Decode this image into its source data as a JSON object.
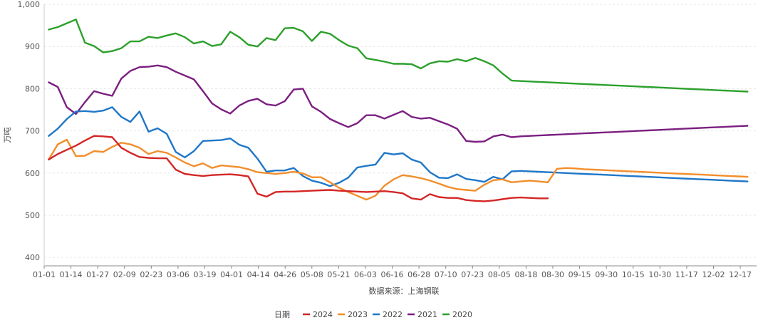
{
  "chart_data": {
    "type": "line",
    "title": "",
    "ylabel": "万吨",
    "xlabel": "数据来源：上海钢联",
    "ylim": [
      380,
      1000
    ],
    "yticks": [
      400,
      500,
      600,
      700,
      800,
      900,
      1000
    ],
    "ytick_labels": [
      "400",
      "500",
      "600",
      "700",
      "800",
      "900",
      "1,000"
    ],
    "x_tick_labels": [
      "01-01",
      "01-14",
      "01-27",
      "02-09",
      "02-23",
      "03-06",
      "03-19",
      "04-01",
      "04-14",
      "04-26",
      "05-08",
      "05-21",
      "06-03",
      "06-16",
      "06-28",
      "07-10",
      "07-23",
      "08-05",
      "08-18",
      "08-30",
      "09-15",
      "09-30",
      "10-15",
      "10-30",
      "11-17",
      "12-02",
      "12-17"
    ],
    "x_tick_positions": [
      0,
      2.95,
      5.9,
      8.85,
      11.8,
      14.75,
      17.7,
      20.65,
      23.6,
      26.55,
      29.5,
      32.45,
      35.4,
      38.35,
      41.3,
      44.25,
      47.2,
      50.15,
      53.1,
      56.05,
      59,
      61.95,
      64.9,
      67.85,
      70.8,
      73.75,
      76.7
    ],
    "x_range": [
      0,
      78.5
    ],
    "legend_title": "日期",
    "legend_position": "bottom-center",
    "series": [
      {
        "name": "2024",
        "color": "#d42626",
        "x": [
          0.5,
          1.5,
          2.5,
          3.5,
          4.5,
          5.5,
          6.5,
          7.5,
          8.5,
          9.5,
          10.5,
          11.5,
          12.5,
          13.5,
          14.5,
          15.5,
          16.5,
          17.5,
          18.5,
          19.5,
          20.5,
          21.5,
          22.5,
          23.5,
          24.5,
          25.5,
          26.5,
          27.5,
          28.5,
          29.5,
          30.5,
          31.5,
          32.5,
          33.5,
          34.5,
          35.5,
          36.5,
          37.5,
          38.5,
          39.5,
          40.5,
          41.5,
          42.5,
          43.5,
          44.5,
          45.5,
          46.5,
          47.5,
          48.5,
          49.5,
          50.5,
          51.5,
          52.5,
          53.5,
          54.5,
          55.5
        ],
        "values": [
          632,
          645,
          655,
          665,
          677,
          688,
          687,
          685,
          660,
          648,
          638,
          636,
          635,
          635,
          608,
          598,
          595,
          593,
          595,
          596,
          597,
          595,
          592,
          551,
          544,
          555,
          556,
          556,
          557,
          558,
          559,
          560,
          558,
          557,
          556,
          555,
          556,
          557,
          555,
          552,
          540,
          537,
          550,
          543,
          541,
          541,
          536,
          534,
          533,
          535,
          538,
          541,
          542,
          541,
          540,
          540
        ]
      },
      {
        "name": "2023",
        "color": "#f28e2b",
        "x": [
          0.5,
          1.5,
          2.5,
          3.5,
          4.5,
          5.5,
          6.5,
          7.5,
          8.5,
          9.5,
          10.5,
          11.5,
          12.5,
          13.5,
          14.5,
          15.5,
          16.5,
          17.5,
          18.5,
          19.5,
          20.5,
          21.5,
          22.5,
          23.5,
          24.5,
          25.5,
          26.5,
          27.5,
          28.5,
          29.5,
          30.5,
          31.5,
          32.5,
          33.5,
          34.5,
          35.5,
          36.5,
          37.5,
          38.5,
          39.5,
          40.5,
          41.5,
          42.5,
          43.5,
          44.5,
          45.5,
          46.5,
          47.5,
          48.5,
          49.5,
          50.5,
          51.5,
          52.5,
          53.5,
          54.5,
          55.5,
          56.5,
          57.5,
          58.5,
          59.5,
          60.5,
          61.5,
          62.5,
          63.5,
          64.5,
          65.5,
          66.5,
          67.5,
          68.5,
          69.5,
          70.5,
          71.5,
          72.5,
          73.5,
          74.5,
          75.5,
          76.5,
          77.5
        ],
        "values": [
          632,
          668,
          679,
          640,
          641,
          652,
          650,
          662,
          672,
          668,
          660,
          645,
          652,
          648,
          637,
          625,
          616,
          623,
          612,
          618,
          616,
          614,
          609,
          602,
          600,
          598,
          600,
          603,
          599,
          590,
          590,
          578,
          565,
          555,
          546,
          537,
          546,
          570,
          585,
          595,
          592,
          588,
          582,
          575,
          567,
          562,
          560,
          558,
          572,
          583,
          585,
          578,
          580,
          582,
          580,
          578,
          610,
          612,
          611,
          609,
          608,
          607,
          606,
          605,
          604,
          603,
          602,
          601,
          600,
          599,
          598,
          597,
          596,
          595,
          594,
          593,
          592,
          591
        ]
      },
      {
        "name": "2022",
        "color": "#1f77c8",
        "x": [
          0.5,
          1.5,
          2.5,
          3.5,
          4.5,
          5.5,
          6.5,
          7.5,
          8.5,
          9.5,
          10.5,
          11.5,
          12.5,
          13.5,
          14.5,
          15.5,
          16.5,
          17.5,
          18.5,
          19.5,
          20.5,
          21.5,
          22.5,
          23.5,
          24.5,
          25.5,
          26.5,
          27.5,
          28.5,
          29.5,
          30.5,
          31.5,
          32.5,
          33.5,
          34.5,
          35.5,
          36.5,
          37.5,
          38.5,
          39.5,
          40.5,
          41.5,
          42.5,
          43.5,
          44.5,
          45.5,
          46.5,
          47.5,
          48.5,
          49.5,
          50.5,
          51.5,
          52.5,
          53.5,
          54.5,
          55.5,
          56.5,
          57.5,
          58.5,
          59.5,
          60.5,
          61.5,
          62.5,
          63.5,
          64.5,
          65.5,
          66.5,
          67.5,
          68.5,
          69.5,
          70.5,
          71.5,
          72.5,
          73.5,
          74.5,
          75.5,
          76.5,
          77.5
        ],
        "values": [
          688,
          705,
          728,
          746,
          747,
          745,
          748,
          756,
          733,
          721,
          746,
          698,
          706,
          693,
          650,
          637,
          652,
          676,
          677,
          678,
          682,
          667,
          660,
          634,
          603,
          606,
          606,
          612,
          593,
          582,
          577,
          569,
          577,
          589,
          613,
          617,
          620,
          648,
          644,
          647,
          632,
          625,
          602,
          589,
          588,
          597,
          586,
          583,
          579,
          591,
          585,
          604,
          605,
          604,
          603,
          602,
          601,
          600,
          599,
          598,
          597,
          596,
          595,
          594,
          593,
          592,
          591,
          590,
          589,
          588,
          587,
          586,
          585,
          584,
          583,
          582,
          581,
          580
        ]
      },
      {
        "name": "2021",
        "color": "#7b1f80",
        "x": [
          0.5,
          1.5,
          2.5,
          3.5,
          4.5,
          5.5,
          6.5,
          7.5,
          8.5,
          9.5,
          10.5,
          11.5,
          12.5,
          13.5,
          14.5,
          15.5,
          16.5,
          17.5,
          18.5,
          19.5,
          20.5,
          21.5,
          22.5,
          23.5,
          24.5,
          25.5,
          26.5,
          27.5,
          28.5,
          29.5,
          30.5,
          31.5,
          32.5,
          33.5,
          34.5,
          35.5,
          36.5,
          37.5,
          38.5,
          39.5,
          40.5,
          41.5,
          42.5,
          43.5,
          44.5,
          45.5,
          46.5,
          47.5,
          48.5,
          49.5,
          50.5,
          51.5,
          52.5,
          53.5,
          54.5,
          55.5,
          56.5,
          57.5,
          58.5,
          59.5,
          60.5,
          61.5,
          62.5,
          63.5,
          64.5,
          65.5,
          66.5,
          67.5,
          68.5,
          69.5,
          70.5,
          71.5,
          72.5,
          73.5,
          74.5,
          75.5,
          76.5,
          77.5
        ],
        "values": [
          815,
          804,
          756,
          740,
          768,
          794,
          788,
          783,
          824,
          842,
          851,
          852,
          855,
          851,
          840,
          831,
          822,
          794,
          765,
          751,
          741,
          760,
          771,
          776,
          763,
          760,
          770,
          798,
          800,
          758,
          745,
          728,
          718,
          709,
          718,
          737,
          737,
          729,
          738,
          747,
          733,
          729,
          731,
          723,
          715,
          705,
          676,
          674,
          675,
          687,
          691,
          685,
          687,
          688,
          689,
          690,
          691,
          692,
          693,
          694,
          695,
          696,
          697,
          698,
          699,
          700,
          701,
          702,
          703,
          704,
          705,
          706,
          707,
          708,
          709,
          710,
          711,
          712
        ]
      },
      {
        "name": "2020",
        "color": "#2ca02c",
        "x": [
          0.5,
          1.5,
          2.5,
          3.5,
          4.5,
          5.5,
          6.5,
          7.5,
          8.5,
          9.5,
          10.5,
          11.5,
          12.5,
          13.5,
          14.5,
          15.5,
          16.5,
          17.5,
          18.5,
          19.5,
          20.5,
          21.5,
          22.5,
          23.5,
          24.5,
          25.5,
          26.5,
          27.5,
          28.5,
          29.5,
          30.5,
          31.5,
          32.5,
          33.5,
          34.5,
          35.5,
          36.5,
          37.5,
          38.5,
          39.5,
          40.5,
          41.5,
          42.5,
          43.5,
          44.5,
          45.5,
          46.5,
          47.5,
          48.5,
          49.5,
          50.5,
          51.5,
          52.5,
          53.5,
          54.5,
          55.5,
          56.5,
          57.5,
          58.5,
          59.5,
          60.5,
          61.5,
          62.5,
          63.5,
          64.5,
          65.5,
          66.5,
          67.5,
          68.5,
          69.5,
          70.5,
          71.5,
          72.5,
          73.5,
          74.5,
          75.5,
          76.5,
          77.5
        ],
        "values": [
          940,
          946,
          955,
          964,
          909,
          901,
          886,
          889,
          896,
          912,
          912,
          923,
          920,
          926,
          931,
          922,
          907,
          912,
          901,
          905,
          935,
          922,
          904,
          900,
          920,
          915,
          943,
          944,
          936,
          913,
          935,
          930,
          915,
          902,
          896,
          872,
          868,
          864,
          859,
          859,
          858,
          848,
          860,
          865,
          864,
          870,
          865,
          873,
          865,
          855,
          836,
          819,
          818,
          817,
          816,
          815,
          814,
          813,
          812,
          811,
          810,
          809,
          808,
          807,
          806,
          805,
          804,
          803,
          802,
          801,
          800,
          799,
          798,
          797,
          796,
          795,
          794,
          793
        ]
      }
    ]
  }
}
